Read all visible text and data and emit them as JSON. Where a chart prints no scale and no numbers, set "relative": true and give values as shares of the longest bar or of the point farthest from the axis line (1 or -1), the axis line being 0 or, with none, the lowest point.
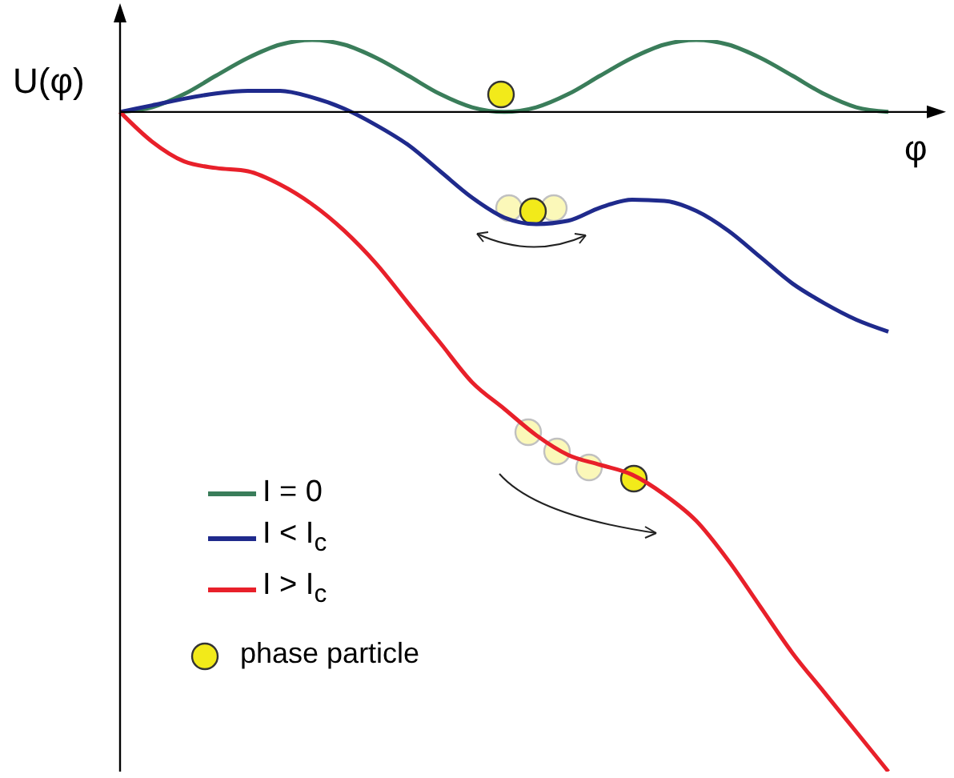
{
  "chart_data": {
    "type": "line",
    "relative": true,
    "xlabel": "φ",
    "ylabel": "U(φ)",
    "categories": [
      null,
      null,
      null,
      null,
      null,
      null,
      null,
      null,
      null,
      null,
      null,
      null,
      null,
      null,
      null,
      null,
      null,
      null,
      null,
      null,
      null,
      null,
      null,
      null,
      null
    ],
    "series": [
      {
        "name": "I = 0",
        "color": "#3a7d5a",
        "values": [
          0,
          0.007,
          0.027,
          0.055,
          0.082,
          0.102,
          0.109,
          0.102,
          0.082,
          0.055,
          0.027,
          0.007,
          0,
          0.007,
          0.027,
          0.055,
          0.082,
          0.102,
          0.109,
          0.102,
          0.082,
          0.055,
          0.027,
          0.007,
          0
        ]
      },
      {
        "name": "I < I$_{c}$",
        "color": "#1f2a8c",
        "values": [
          0,
          0.01,
          0.02,
          0.028,
          0.032,
          0.032,
          0.022,
          0.005,
          -0.02,
          -0.05,
          -0.09,
          -0.13,
          -0.16,
          -0.17,
          -0.165,
          -0.145,
          -0.133,
          -0.135,
          -0.15,
          -0.18,
          -0.22,
          -0.26,
          -0.29,
          -0.315,
          -0.333
        ]
      },
      {
        "name": "I > I$_{c}$",
        "color": "#e8202a",
        "values": [
          0,
          -0.045,
          -0.075,
          -0.085,
          -0.09,
          -0.11,
          -0.14,
          -0.18,
          -0.23,
          -0.29,
          -0.35,
          -0.41,
          -0.45,
          -0.49,
          -0.52,
          -0.535,
          -0.55,
          -0.58,
          -0.62,
          -0.68,
          -0.75,
          -0.82,
          -0.88,
          -0.94,
          -1
        ]
      }
    ],
    "legend": "bottom left",
    "marker": "none",
    "line_style": "solid",
    "grid": false,
    "annotations": [
      "phase particle"
    ]
  }
}
